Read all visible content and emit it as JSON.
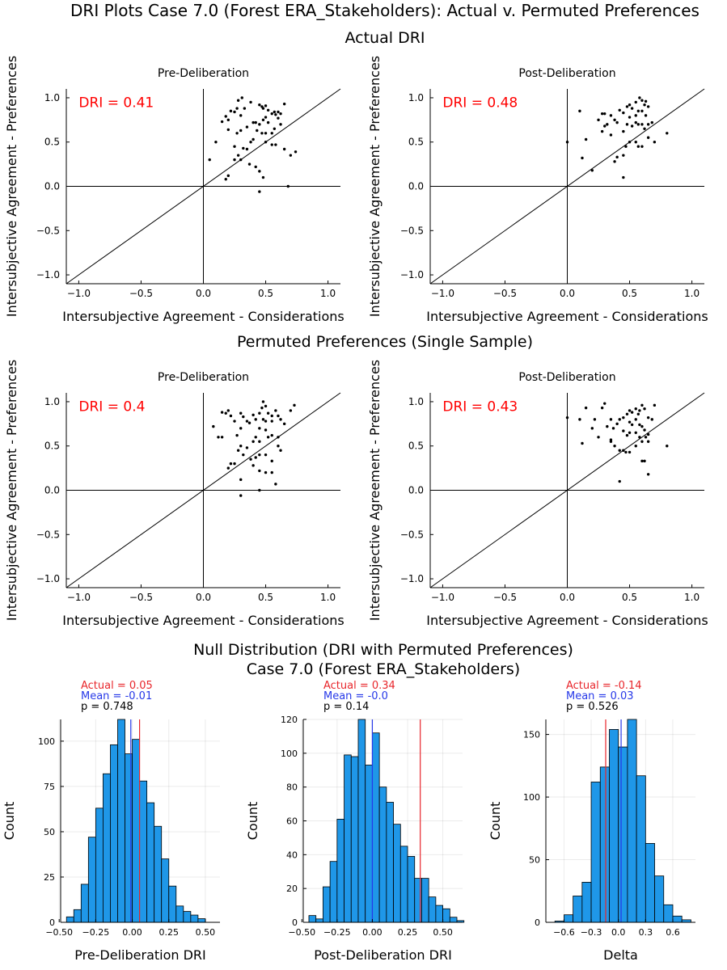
{
  "figure": {
    "title": "DRI Plots Case 7.0 (Forest ERA_Stakeholders): Actual v. Permuted Preferences",
    "section_actual": "Actual DRI",
    "section_permuted": "Permuted Preferences (Single Sample)",
    "section_null_line1": "Null Distribution (DRI with Permuted Preferences)",
    "section_null_line2": "Case 7.0 (Forest ERA_Stakeholders)"
  },
  "colors": {
    "bar_fill": "#1f97e8",
    "actual_line": "#e8262b",
    "mean_line": "#2638e8",
    "dri_text": "#ff0000"
  },
  "chart_data": [
    {
      "id": "actual-pre",
      "type": "scatter",
      "title": "Pre-Deliberation",
      "xlabel": "Intersubjective Agreement - Considerations",
      "ylabel": "Intersubjective Agreement - Preferences",
      "xlim": [
        -1.1,
        1.1
      ],
      "ylim": [
        -1.1,
        1.1
      ],
      "ticks": [
        -1.0,
        -0.5,
        0.0,
        0.5,
        1.0
      ],
      "tick_labels": [
        "−1.0",
        "−0.5",
        "0.0",
        "0.5",
        "1.0"
      ],
      "annotation": "DRI = 0.41",
      "points": [
        [
          0.15,
          0.73
        ],
        [
          0.18,
          0.79
        ],
        [
          0.2,
          0.75
        ],
        [
          0.22,
          0.85
        ],
        [
          0.25,
          0.84
        ],
        [
          0.27,
          0.88
        ],
        [
          0.28,
          0.97
        ],
        [
          0.31,
          1.0
        ],
        [
          0.3,
          0.8
        ],
        [
          0.33,
          0.88
        ],
        [
          0.38,
          0.95
        ],
        [
          0.2,
          0.64
        ],
        [
          0.27,
          0.6
        ],
        [
          0.3,
          0.63
        ],
        [
          0.35,
          0.67
        ],
        [
          0.4,
          0.72
        ],
        [
          0.42,
          0.72
        ],
        [
          0.45,
          0.92
        ],
        [
          0.47,
          0.9
        ],
        [
          0.48,
          0.88
        ],
        [
          0.5,
          0.91
        ],
        [
          0.52,
          0.86
        ],
        [
          0.5,
          0.78
        ],
        [
          0.52,
          0.72
        ],
        [
          0.55,
          0.82
        ],
        [
          0.57,
          0.84
        ],
        [
          0.58,
          0.81
        ],
        [
          0.6,
          0.84
        ],
        [
          0.62,
          0.82
        ],
        [
          0.6,
          0.77
        ],
        [
          0.62,
          0.7
        ],
        [
          0.65,
          0.93
        ],
        [
          0.45,
          0.7
        ],
        [
          0.48,
          0.75
        ],
        [
          0.43,
          0.63
        ],
        [
          0.47,
          0.6
        ],
        [
          0.5,
          0.6
        ],
        [
          0.55,
          0.6
        ],
        [
          0.57,
          0.65
        ],
        [
          0.4,
          0.53
        ],
        [
          0.38,
          0.5
        ],
        [
          0.5,
          0.5
        ],
        [
          0.55,
          0.47
        ],
        [
          0.58,
          0.47
        ],
        [
          0.25,
          0.45
        ],
        [
          0.32,
          0.43
        ],
        [
          0.35,
          0.42
        ],
        [
          0.28,
          0.35
        ],
        [
          0.3,
          0.3
        ],
        [
          0.2,
          0.12
        ],
        [
          0.18,
          0.08
        ],
        [
          0.25,
          0.3
        ],
        [
          0.37,
          0.25
        ],
        [
          0.42,
          0.22
        ],
        [
          0.45,
          0.17
        ],
        [
          0.48,
          0.1
        ],
        [
          0.45,
          -0.06
        ],
        [
          0.65,
          0.42
        ],
        [
          0.7,
          0.35
        ],
        [
          0.74,
          0.39
        ],
        [
          0.68,
          0.0
        ],
        [
          0.05,
          0.3
        ],
        [
          0.1,
          0.5
        ]
      ]
    },
    {
      "id": "actual-post",
      "type": "scatter",
      "title": "Post-Deliberation",
      "xlabel": "Intersubjective Agreement - Considerations",
      "ylabel": "Intersubjective Agreement - Preferences",
      "xlim": [
        -1.1,
        1.1
      ],
      "ylim": [
        -1.1,
        1.1
      ],
      "ticks": [
        -1.0,
        -0.5,
        0.0,
        0.5,
        1.0
      ],
      "tick_labels": [
        "−1.0",
        "−0.5",
        "0.0",
        "0.5",
        "1.0"
      ],
      "annotation": "DRI = 0.48",
      "points": [
        [
          0.0,
          0.5
        ],
        [
          0.1,
          0.85
        ],
        [
          0.12,
          0.32
        ],
        [
          0.15,
          0.53
        ],
        [
          0.2,
          0.18
        ],
        [
          0.25,
          0.75
        ],
        [
          0.28,
          0.82
        ],
        [
          0.3,
          0.82
        ],
        [
          0.32,
          0.7
        ],
        [
          0.35,
          0.8
        ],
        [
          0.38,
          0.75
        ],
        [
          0.4,
          0.72
        ],
        [
          0.42,
          0.86
        ],
        [
          0.45,
          0.83
        ],
        [
          0.45,
          0.62
        ],
        [
          0.48,
          0.9
        ],
        [
          0.5,
          0.92
        ],
        [
          0.52,
          0.88
        ],
        [
          0.55,
          0.95
        ],
        [
          0.57,
          0.85
        ],
        [
          0.58,
          1.0
        ],
        [
          0.6,
          0.97
        ],
        [
          0.62,
          0.92
        ],
        [
          0.63,
          0.8
        ],
        [
          0.65,
          0.9
        ],
        [
          0.55,
          0.72
        ],
        [
          0.57,
          0.7
        ],
        [
          0.6,
          0.7
        ],
        [
          0.62,
          0.65
        ],
        [
          0.65,
          0.7
        ],
        [
          0.68,
          0.72
        ],
        [
          0.48,
          0.7
        ],
        [
          0.5,
          0.78
        ],
        [
          0.52,
          0.68
        ],
        [
          0.55,
          0.8
        ],
        [
          0.6,
          0.85
        ],
        [
          0.63,
          0.96
        ],
        [
          0.47,
          0.45
        ],
        [
          0.5,
          0.5
        ],
        [
          0.55,
          0.5
        ],
        [
          0.57,
          0.45
        ],
        [
          0.4,
          0.33
        ],
        [
          0.45,
          0.35
        ],
        [
          0.38,
          0.28
        ],
        [
          0.45,
          0.1
        ],
        [
          0.6,
          0.45
        ],
        [
          0.65,
          0.55
        ],
        [
          0.7,
          0.5
        ],
        [
          0.8,
          0.6
        ],
        [
          0.28,
          0.62
        ],
        [
          0.3,
          0.68
        ],
        [
          0.35,
          0.58
        ]
      ]
    },
    {
      "id": "perm-pre",
      "type": "scatter",
      "title": "Pre-Deliberation",
      "xlabel": "Intersubjective Agreement - Considerations",
      "ylabel": "Intersubjective Agreement - Preferences",
      "xlim": [
        -1.1,
        1.1
      ],
      "ylim": [
        -1.1,
        1.1
      ],
      "ticks": [
        -1.0,
        -0.5,
        0.0,
        0.5,
        1.0
      ],
      "tick_labels": [
        "−1.0",
        "−0.5",
        "0.0",
        "0.5",
        "1.0"
      ],
      "annotation": "DRI = 0.4",
      "points": [
        [
          0.08,
          0.72
        ],
        [
          0.12,
          0.6
        ],
        [
          0.15,
          0.88
        ],
        [
          0.18,
          0.87
        ],
        [
          0.2,
          0.9
        ],
        [
          0.22,
          0.84
        ],
        [
          0.25,
          0.78
        ],
        [
          0.27,
          0.62
        ],
        [
          0.3,
          0.7
        ],
        [
          0.3,
          0.87
        ],
        [
          0.32,
          0.83
        ],
        [
          0.35,
          0.78
        ],
        [
          0.37,
          0.76
        ],
        [
          0.4,
          0.85
        ],
        [
          0.42,
          0.8
        ],
        [
          0.45,
          0.87
        ],
        [
          0.47,
          0.93
        ],
        [
          0.48,
          1.0
        ],
        [
          0.5,
          0.95
        ],
        [
          0.52,
          0.87
        ],
        [
          0.55,
          0.84
        ],
        [
          0.58,
          0.9
        ],
        [
          0.6,
          0.84
        ],
        [
          0.62,
          0.8
        ],
        [
          0.65,
          0.75
        ],
        [
          0.7,
          0.9
        ],
        [
          0.73,
          0.96
        ],
        [
          0.48,
          0.8
        ],
        [
          0.5,
          0.78
        ],
        [
          0.55,
          0.78
        ],
        [
          0.45,
          0.7
        ],
        [
          0.5,
          0.68
        ],
        [
          0.52,
          0.6
        ],
        [
          0.55,
          0.62
        ],
        [
          0.6,
          0.6
        ],
        [
          0.6,
          0.5
        ],
        [
          0.62,
          0.45
        ],
        [
          0.42,
          0.6
        ],
        [
          0.4,
          0.55
        ],
        [
          0.45,
          0.55
        ],
        [
          0.3,
          0.5
        ],
        [
          0.35,
          0.48
        ],
        [
          0.28,
          0.45
        ],
        [
          0.32,
          0.4
        ],
        [
          0.38,
          0.35
        ],
        [
          0.42,
          0.37
        ],
        [
          0.45,
          0.4
        ],
        [
          0.5,
          0.4
        ],
        [
          0.55,
          0.33
        ],
        [
          0.2,
          0.25
        ],
        [
          0.22,
          0.3
        ],
        [
          0.25,
          0.3
        ],
        [
          0.4,
          0.28
        ],
        [
          0.45,
          0.22
        ],
        [
          0.5,
          0.2
        ],
        [
          0.55,
          0.2
        ],
        [
          0.3,
          0.12
        ],
        [
          0.3,
          -0.06
        ],
        [
          0.45,
          0.0
        ],
        [
          0.58,
          0.07
        ],
        [
          0.15,
          0.6
        ]
      ]
    },
    {
      "id": "perm-post",
      "type": "scatter",
      "title": "Post-Deliberation",
      "xlabel": "Intersubjective Agreement - Considerations",
      "ylabel": "Intersubjective Agreement - Preferences",
      "xlim": [
        -1.1,
        1.1
      ],
      "ylim": [
        -1.1,
        1.1
      ],
      "ticks": [
        -1.0,
        -0.5,
        0.0,
        0.5,
        1.0
      ],
      "tick_labels": [
        "−1.0",
        "−0.5",
        "0.0",
        "0.5",
        "1.0"
      ],
      "annotation": "DRI = 0.43",
      "points": [
        [
          0.0,
          0.82
        ],
        [
          0.1,
          0.8
        ],
        [
          0.12,
          0.53
        ],
        [
          0.15,
          0.93
        ],
        [
          0.2,
          0.7
        ],
        [
          0.22,
          0.8
        ],
        [
          0.25,
          0.6
        ],
        [
          0.28,
          0.93
        ],
        [
          0.3,
          0.98
        ],
        [
          0.32,
          0.72
        ],
        [
          0.35,
          0.8
        ],
        [
          0.37,
          0.7
        ],
        [
          0.4,
          0.75
        ],
        [
          0.42,
          0.8
        ],
        [
          0.45,
          0.82
        ],
        [
          0.48,
          0.86
        ],
        [
          0.5,
          0.9
        ],
        [
          0.52,
          0.88
        ],
        [
          0.55,
          0.92
        ],
        [
          0.57,
          0.86
        ],
        [
          0.58,
          0.9
        ],
        [
          0.6,
          0.96
        ],
        [
          0.62,
          0.92
        ],
        [
          0.65,
          0.82
        ],
        [
          0.68,
          0.8
        ],
        [
          0.7,
          0.96
        ],
        [
          0.5,
          0.77
        ],
        [
          0.52,
          0.74
        ],
        [
          0.55,
          0.8
        ],
        [
          0.58,
          0.74
        ],
        [
          0.6,
          0.72
        ],
        [
          0.62,
          0.68
        ],
        [
          0.65,
          0.63
        ],
        [
          0.45,
          0.67
        ],
        [
          0.48,
          0.62
        ],
        [
          0.5,
          0.65
        ],
        [
          0.55,
          0.65
        ],
        [
          0.58,
          0.6
        ],
        [
          0.6,
          0.55
        ],
        [
          0.63,
          0.6
        ],
        [
          0.65,
          0.55
        ],
        [
          0.35,
          0.55
        ],
        [
          0.38,
          0.5
        ],
        [
          0.42,
          0.45
        ],
        [
          0.45,
          0.45
        ],
        [
          0.47,
          0.43
        ],
        [
          0.5,
          0.43
        ],
        [
          0.55,
          0.5
        ],
        [
          0.6,
          0.33
        ],
        [
          0.62,
          0.33
        ],
        [
          0.65,
          0.18
        ],
        [
          0.42,
          0.1
        ],
        [
          0.8,
          0.5
        ],
        [
          0.35,
          0.57
        ]
      ]
    },
    {
      "id": "null-pre",
      "type": "bar",
      "xlabel": "Pre-Deliberation DRI",
      "ylabel": "Count",
      "xlim": [
        -0.49,
        0.6
      ],
      "ylim": [
        0,
        112
      ],
      "xticks": [
        -0.5,
        -0.25,
        0.0,
        0.25,
        0.5
      ],
      "xtick_labels": [
        "−0.50",
        "−0.25",
        "0.00",
        "0.25",
        "0.50"
      ],
      "yticks": [
        0,
        25,
        50,
        75,
        100
      ],
      "ytick_labels": [
        "0",
        "25",
        "50",
        "75",
        "100"
      ],
      "bin_start": -0.45,
      "bin_width": 0.05,
      "values": [
        3,
        7,
        21,
        47,
        63,
        82,
        98,
        112,
        93,
        101,
        78,
        66,
        53,
        35,
        20,
        9,
        6,
        4,
        2
      ],
      "actual": 0.05,
      "mean": -0.01,
      "text_actual": "Actual = 0.05",
      "text_mean": "Mean = -0.01",
      "text_p": "p = 0.748"
    },
    {
      "id": "null-post",
      "type": "bar",
      "xlabel": "Post-Deliberation DRI",
      "ylabel": "Count",
      "xlim": [
        -0.49,
        0.64
      ],
      "ylim": [
        0,
        120
      ],
      "xticks": [
        -0.5,
        -0.25,
        0.0,
        0.25,
        0.5
      ],
      "xtick_labels": [
        "−0.50",
        "−0.25",
        "0.00",
        "0.25",
        "0.50"
      ],
      "yticks": [
        0,
        20,
        40,
        60,
        80,
        100,
        120
      ],
      "ytick_labels": [
        "0",
        "20",
        "40",
        "60",
        "80",
        "100",
        "120"
      ],
      "bin_start": -0.45,
      "bin_width": 0.05,
      "values": [
        4,
        2,
        21,
        36,
        61,
        99,
        98,
        120,
        93,
        112,
        80,
        71,
        58,
        45,
        39,
        26,
        26,
        15,
        10,
        8,
        3,
        1
      ],
      "actual": 0.34,
      "mean": 0.0,
      "text_actual": "Actual = 0.34",
      "text_mean": "Mean = -0.0",
      "text_p": "p = 0.14"
    },
    {
      "id": "null-delta",
      "type": "bar",
      "xlabel": "Delta",
      "ylabel": "Count",
      "xlim": [
        -0.8,
        0.85
      ],
      "ylim": [
        0,
        162
      ],
      "xticks": [
        -0.6,
        -0.3,
        0.0,
        0.3,
        0.6
      ],
      "xtick_labels": [
        "−0.6",
        "−0.3",
        "0.0",
        "0.3",
        "0.6"
      ],
      "yticks": [
        0,
        50,
        100,
        150
      ],
      "ytick_labels": [
        "0",
        "50",
        "100",
        "150"
      ],
      "bin_start": -0.7,
      "bin_width": 0.1,
      "values": [
        1,
        6,
        21,
        32,
        112,
        124,
        154,
        140,
        162,
        117,
        63,
        37,
        14,
        5,
        2
      ],
      "actual": -0.14,
      "mean": 0.03,
      "text_actual": "Actual = -0.14",
      "text_mean": "Mean = 0.03",
      "text_p": "p = 0.526"
    }
  ]
}
